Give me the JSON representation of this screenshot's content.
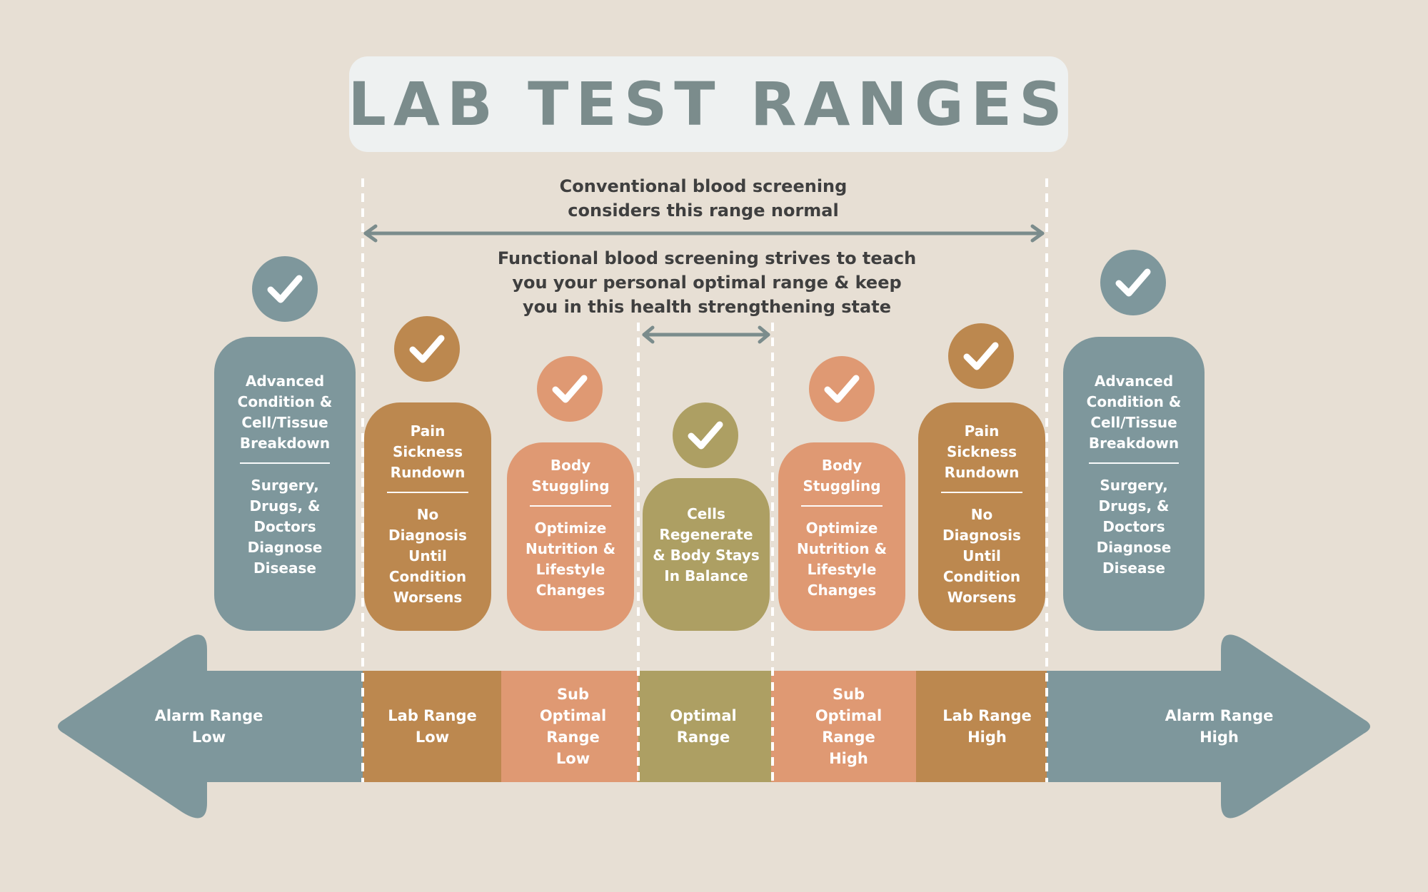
{
  "title": "LAB TEST RANGES",
  "colors": {
    "background": "#e7dfd4",
    "slate": "#7e979c",
    "brown": "#bc884f",
    "peach": "#df9973",
    "olive": "#ad9f63",
    "title_text": "#7b8c8c",
    "title_box": "#eef1f1"
  },
  "captions": {
    "conventional": "Conventional blood screening considers this range normal",
    "functional": "Functional blood screening strives to teach you your personal optimal range & keep you in this health strengthening state"
  },
  "columns": [
    {
      "key": "alarm-low",
      "color": "slate",
      "top": "Advanced Condition & Cell/Tissue Breakdown",
      "bottom": "Surgery, Drugs, & Doctors Diagnose Disease",
      "range_label": "Alarm Range Low",
      "icon": "check-icon"
    },
    {
      "key": "lab-low",
      "color": "brown",
      "top": "Pain Sickness Rundown",
      "bottom": "No Diagnosis Until Condition Worsens",
      "range_label": "Lab Range Low",
      "icon": "check-icon"
    },
    {
      "key": "sub-low",
      "color": "peach",
      "top": "Body Stuggling",
      "bottom": "Optimize Nutrition & Lifestyle Changes",
      "range_label": "Sub Optimal Range Low",
      "icon": "check-icon"
    },
    {
      "key": "optimal",
      "color": "olive",
      "top": "Cells Regenerate & Body Stays In Balance",
      "bottom": "",
      "range_label": "Optimal Range",
      "icon": "check-icon"
    },
    {
      "key": "sub-high",
      "color": "peach",
      "top": "Body Stuggling",
      "bottom": "Optimize Nutrition & Lifestyle Changes",
      "range_label": "Sub Optimal Range High",
      "icon": "check-icon"
    },
    {
      "key": "lab-high",
      "color": "brown",
      "top": "Pain Sickness Rundown",
      "bottom": "No Diagnosis Until Condition Worsens",
      "range_label": "Lab Range High",
      "icon": "check-icon"
    },
    {
      "key": "alarm-high",
      "color": "slate",
      "top": "Advanced Condition & Cell/Tissue Breakdown",
      "bottom": "Surgery, Drugs, & Doctors Diagnose Disease",
      "range_label": "Alarm Range High",
      "icon": "check-icon"
    }
  ]
}
